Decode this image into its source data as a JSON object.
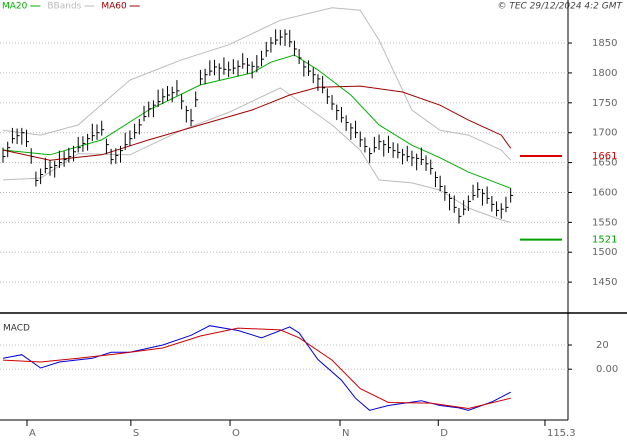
{
  "chart_data": [
    {
      "type": "ohlc",
      "annotation": "© TEC 29/12/2024 4:2 GMT",
      "bar_color": "#000000",
      "xlim": [
        -0.64,
        120.2
      ],
      "ylim": [
        1400,
        1922
      ],
      "yticks": [
        1450,
        1500,
        1550,
        1600,
        1650,
        1700,
        1750,
        1800,
        1850
      ],
      "grid": true,
      "high": [
        1675,
        1685,
        1708,
        1707,
        1708,
        1705,
        1674,
        1635,
        1640,
        1658,
        1654,
        1653,
        1670,
        1669,
        1675,
        1678,
        1693,
        1694,
        1698,
        1715,
        1714,
        1720,
        1690,
        1673,
        1674,
        1678,
        1700,
        1704,
        1715,
        1723,
        1745,
        1752,
        1754,
        1772,
        1774,
        1778,
        1777,
        1788,
        1765,
        1745,
        1740,
        1769,
        1805,
        1807,
        1821,
        1822,
        1816,
        1826,
        1819,
        1823,
        1821,
        1833,
        1825,
        1819,
        1830,
        1837,
        1852,
        1860,
        1873,
        1872,
        1873,
        1872,
        1854,
        1840,
        1820,
        1821,
        1809,
        1798,
        1795,
        1774,
        1763,
        1747,
        1743,
        1729,
        1716,
        1720,
        1702,
        1692,
        1675,
        1693,
        1697,
        1688,
        1695,
        1684,
        1682,
        1673,
        1678,
        1670,
        1665,
        1675,
        1662,
        1655,
        1635,
        1628,
        1612,
        1598,
        1595,
        1574,
        1587,
        1595,
        1613,
        1617,
        1606,
        1610,
        1594,
        1585,
        1582,
        1593,
        1607
      ],
      "low": [
        1650,
        1659,
        1682,
        1681,
        1680,
        1676,
        1648,
        1610,
        1614,
        1632,
        1628,
        1625,
        1641,
        1643,
        1650,
        1652,
        1667,
        1668,
        1670,
        1686,
        1688,
        1695,
        1664,
        1647,
        1648,
        1650,
        1671,
        1678,
        1690,
        1697,
        1719,
        1726,
        1726,
        1743,
        1748,
        1753,
        1751,
        1762,
        1739,
        1717,
        1711,
        1743,
        1780,
        1781,
        1795,
        1796,
        1788,
        1797,
        1793,
        1798,
        1795,
        1807,
        1799,
        1791,
        1801,
        1811,
        1827,
        1834,
        1847,
        1846,
        1845,
        1843,
        1828,
        1815,
        1794,
        1795,
        1783,
        1770,
        1766,
        1748,
        1738,
        1721,
        1717,
        1703,
        1688,
        1691,
        1676,
        1667,
        1649,
        1667,
        1671,
        1660,
        1666,
        1658,
        1657,
        1647,
        1652,
        1644,
        1637,
        1646,
        1636,
        1630,
        1609,
        1602,
        1586,
        1570,
        1566,
        1548,
        1562,
        1569,
        1587,
        1591,
        1578,
        1581,
        1568,
        1560,
        1556,
        1567,
        1583
      ],
      "close": [
        1660,
        1675,
        1690,
        1695,
        1700,
        1685,
        1660,
        1620,
        1630,
        1640,
        1642,
        1645,
        1650,
        1655,
        1660,
        1668,
        1675,
        1682,
        1690,
        1695,
        1700,
        1705,
        1680,
        1655,
        1662,
        1670,
        1680,
        1690,
        1700,
        1713,
        1727,
        1740,
        1746,
        1752,
        1760,
        1763,
        1767,
        1770,
        1753,
        1737,
        1720,
        1755,
        1790,
        1797,
        1803,
        1810,
        1808,
        1806,
        1805,
        1808,
        1811,
        1815,
        1813,
        1811,
        1810,
        1823,
        1837,
        1850,
        1855,
        1860,
        1865,
        1852,
        1840,
        1825,
        1810,
        1803,
        1797,
        1790,
        1775,
        1760,
        1748,
        1737,
        1725,
        1717,
        1708,
        1700,
        1688,
        1677,
        1665,
        1675,
        1685,
        1680,
        1675,
        1670,
        1667,
        1663,
        1660,
        1658,
        1657,
        1655,
        1648,
        1640,
        1625,
        1610,
        1600,
        1590,
        1575,
        1560,
        1572,
        1585,
        1595,
        1605,
        1598,
        1590,
        1580,
        1570,
        1572,
        1575,
        1595
      ],
      "lines": [
        {
          "name": "MA20",
          "color": "#00b000",
          "x": [
            0,
            10,
            21,
            31,
            42,
            53,
            57,
            62,
            67,
            74,
            80,
            87,
            93,
            99,
            108
          ],
          "values": [
            1671,
            1663,
            1688,
            1738,
            1780,
            1800,
            1818,
            1830,
            1805,
            1763,
            1713,
            1679,
            1658,
            1634,
            1607
          ]
        },
        {
          "name": "BBands",
          "color": "#bbbbbb",
          "x": [
            0,
            8,
            16,
            27,
            38,
            48,
            59,
            70,
            76,
            80,
            87,
            93,
            99,
            106,
            108
          ],
          "upper": [
            1704,
            1696,
            1713,
            1788,
            1822,
            1847,
            1888,
            1909,
            1905,
            1855,
            1738,
            1704,
            1696,
            1671,
            1654
          ],
          "lower": [
            1621,
            1624,
            1665,
            1663,
            1704,
            1734,
            1775,
            1713,
            1671,
            1621,
            1616,
            1604,
            1574,
            1554,
            1550
          ]
        },
        {
          "name": "MA60",
          "color": "#a00000",
          "x": [
            0,
            10,
            21,
            31,
            42,
            53,
            61,
            67,
            76,
            85,
            93,
            99,
            106,
            108
          ],
          "values": [
            1671,
            1654,
            1663,
            1688,
            1713,
            1738,
            1763,
            1776,
            1778,
            1768,
            1746,
            1721,
            1696,
            1674
          ]
        }
      ],
      "levels": [
        {
          "value": 1661,
          "color": "#dd0000"
        },
        {
          "value": 1521,
          "color": "#00a000"
        }
      ]
    },
    {
      "type": "line",
      "title": "MACD",
      "xlim": [
        -0.64,
        120.2
      ],
      "ylim": [
        -42,
        44
      ],
      "yticks": [
        20,
        {
          "value": 0,
          "label": "0.00"
        }
      ],
      "xticks": [
        {
          "value": 5.1,
          "label": "A"
        },
        {
          "value": 27.2,
          "label": "S"
        },
        {
          "value": 48.3,
          "label": "O"
        },
        {
          "value": 71.7,
          "label": "N"
        },
        {
          "value": 92.6,
          "label": "D"
        },
        115.3
      ],
      "grid": true,
      "series": [
        {
          "color": "#0000dd",
          "x": [
            0,
            4,
            8,
            12,
            19,
            23,
            27,
            34,
            40,
            44,
            50,
            55,
            61,
            63,
            67,
            72,
            75,
            78,
            82,
            89,
            93,
            97,
            99,
            104,
            108
          ],
          "values": [
            9,
            12,
            1,
            6,
            9,
            14,
            14,
            20,
            28,
            36,
            32,
            26,
            35,
            30,
            8,
            -9,
            -24,
            -34,
            -30,
            -26,
            -30,
            -32,
            -34,
            -27,
            -19
          ]
        },
        {
          "color": "#cc0000",
          "x": [
            0,
            8,
            16,
            25,
            34,
            42,
            50,
            59,
            63,
            70,
            76,
            82,
            91,
            99,
            108
          ],
          "values": [
            7.5,
            6,
            9,
            13,
            17.5,
            27.5,
            34,
            32.5,
            26,
            7.5,
            -16,
            -27.5,
            -28,
            -32.5,
            -24
          ]
        }
      ]
    }
  ]
}
